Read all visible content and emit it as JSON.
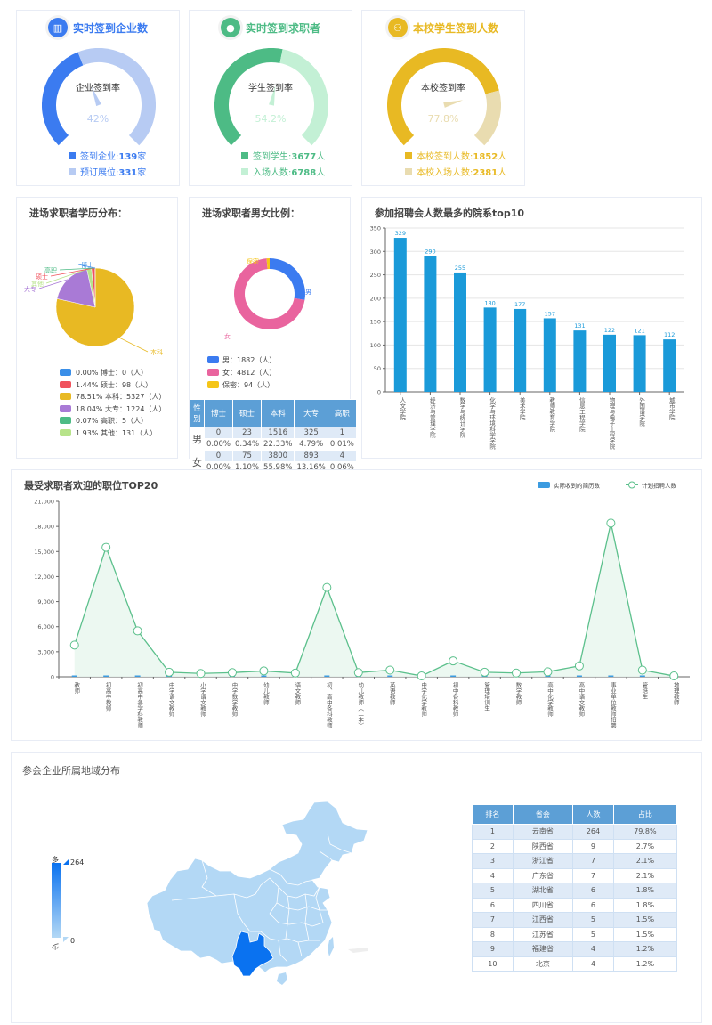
{
  "gauges": [
    {
      "title": "实时签到企业数",
      "icon": "building-chart-icon",
      "color": "#3b7bf0",
      "light": "#b7cbf3",
      "center_label": "企业签到率",
      "percent_text": "42%",
      "percent": 42,
      "legend": [
        {
          "label": "签到企业:",
          "value": "139",
          "unit": "家"
        },
        {
          "label": "预订展位:",
          "value": "331",
          "unit": "家"
        }
      ]
    },
    {
      "title": "实时签到求职者",
      "icon": "user-icon",
      "color": "#4dbb85",
      "light": "#c3f0d5",
      "center_label": "学生签到率",
      "percent_text": "54.2%",
      "percent": 54.2,
      "legend": [
        {
          "label": "签到学生:",
          "value": "3677",
          "unit": "人"
        },
        {
          "label": "入场人数:",
          "value": "6788",
          "unit": "人"
        }
      ]
    },
    {
      "title": "本校学生签到人数",
      "icon": "students-icon",
      "color": "#e8b923",
      "light": "#e9dcb0",
      "center_label": "本校签到率",
      "percent_text": "77.8%",
      "percent": 77.8,
      "legend": [
        {
          "label": "本校签到人数:",
          "value": "1852",
          "unit": "人"
        },
        {
          "label": "本校入场人数:",
          "value": "2381",
          "unit": "人"
        }
      ]
    }
  ],
  "education": {
    "title": "进场求职者学历分布：",
    "slices": [
      {
        "name": "博士",
        "pct": "0.00%",
        "count": 0,
        "color": "#3b8fe8",
        "legend": "0.00%  博士：0（人）"
      },
      {
        "name": "硕士",
        "pct": "1.44%",
        "count": 98,
        "color": "#f0525c",
        "legend": "1.44%  硕士：98（人）"
      },
      {
        "name": "本科",
        "pct": "78.51%",
        "count": 5327,
        "color": "#e8b923",
        "legend": "78.51%  本科：5327（人）"
      },
      {
        "name": "大专",
        "pct": "18.04%",
        "count": 1224,
        "color": "#a97ad6",
        "legend": "18.04%  大专：1224（人）"
      },
      {
        "name": "高职",
        "pct": "0.07%",
        "count": 5,
        "color": "#4dbb85",
        "legend": "0.07%  高职：5（人）"
      },
      {
        "name": "其他",
        "pct": "1.93%",
        "count": 131,
        "color": "#b7e38a",
        "legend": "1.93%  其他：131（人）"
      }
    ]
  },
  "gender": {
    "title": "进场求职者男女比例：",
    "slices": [
      {
        "name": "男",
        "count": 1882,
        "color": "#3b7bf0",
        "legend": "男：1882（人）"
      },
      {
        "name": "女",
        "count": 4812,
        "color": "#e9649e",
        "legend": "女：4812（人）"
      },
      {
        "name": "保密",
        "count": 94,
        "color": "#f5c518",
        "legend": "保密：94（人）"
      }
    ],
    "table": {
      "headers": [
        "性别",
        "博士",
        "硕士",
        "本科",
        "大专",
        "高职"
      ],
      "rows": [
        {
          "gender": "男",
          "counts": [
            "0",
            "23",
            "1516",
            "325",
            "1"
          ],
          "pcts": [
            "0.00%",
            "0.34%",
            "22.33%",
            "4.79%",
            "0.01%"
          ]
        },
        {
          "gender": "女",
          "counts": [
            "0",
            "75",
            "3800",
            "893",
            "4"
          ],
          "pcts": [
            "0.00%",
            "1.10%",
            "55.98%",
            "13.16%",
            "0.06%"
          ]
        }
      ]
    }
  },
  "chart_data": [
    {
      "type": "bar",
      "title": "参加招聘会人数最多的院系top10",
      "categories": [
        "人文学院",
        "经济与管理学院",
        "数学与统计学院",
        "化学与环境科学学院",
        "美术学院",
        "教师教育学院",
        "信息工程学院",
        "物理与电子工程学院",
        "外国语学院",
        "城市学院"
      ],
      "values": [
        329,
        290,
        255,
        180,
        177,
        157,
        131,
        122,
        121,
        112
      ],
      "ylim": [
        0,
        350
      ],
      "yticks": [
        0,
        50,
        100,
        150,
        200,
        250,
        300,
        350
      ],
      "xlabel": "",
      "ylabel": "",
      "color": "#1a9ad9",
      "grid": true
    },
    {
      "type": "line",
      "title": "最受求职者欢迎的职位TOP20",
      "categories": [
        "教师",
        "初高中教师",
        "初高中各学科教师",
        "中学语文教师",
        "小学语文教师",
        "中学数学教师",
        "幼儿教师",
        "语文教师",
        "初、高中各科教师",
        "幼儿教师（二本）",
        "英语教师",
        "中学化学教师",
        "初中各科教师",
        "管理培训生",
        "数学教师",
        "高中化学教师",
        "高中语文教师",
        "事业单位教师招聘",
        "管培生",
        "地理教师"
      ],
      "series": [
        {
          "name": "实际收到的简历数",
          "kind": "bar",
          "color": "#3b9be0",
          "values": [
            120,
            110,
            90,
            20,
            10,
            15,
            30,
            10,
            40,
            20,
            30,
            10,
            25,
            15,
            10,
            20,
            30,
            40,
            20,
            10
          ]
        },
        {
          "name": "计划招聘人数",
          "kind": "line-area",
          "color": "#5cc08c",
          "values": [
            3800,
            15500,
            5500,
            550,
            400,
            500,
            700,
            450,
            10700,
            500,
            800,
            100,
            1900,
            550,
            450,
            600,
            1300,
            18400,
            800,
            100
          ]
        }
      ],
      "ylim": [
        0,
        21000
      ],
      "yticks": [
        "0",
        "3,000",
        "6,000",
        "9,000",
        "12,000",
        "15,000",
        "18,000",
        "21,000"
      ],
      "legend_position": "top-right"
    }
  ],
  "map": {
    "title": "参会企业所属地域分布",
    "scale_high_label": "多",
    "scale_low_label": "少",
    "scale_max": "264",
    "scale_min": "0",
    "highlight_region": "云南省",
    "highlight_color": "#0a72f0",
    "base_color": "#b3d8f5",
    "table": {
      "headers": [
        "排名",
        "省会",
        "人数",
        "占比"
      ],
      "rows": [
        [
          "1",
          "云南省",
          "264",
          "79.8%"
        ],
        [
          "2",
          "陕西省",
          "9",
          "2.7%"
        ],
        [
          "3",
          "浙江省",
          "7",
          "2.1%"
        ],
        [
          "4",
          "广东省",
          "7",
          "2.1%"
        ],
        [
          "5",
          "湖北省",
          "6",
          "1.8%"
        ],
        [
          "6",
          "四川省",
          "6",
          "1.8%"
        ],
        [
          "7",
          "江西省",
          "5",
          "1.5%"
        ],
        [
          "8",
          "江苏省",
          "5",
          "1.5%"
        ],
        [
          "9",
          "福建省",
          "4",
          "1.2%"
        ],
        [
          "10",
          "北京",
          "4",
          "1.2%"
        ]
      ]
    }
  }
}
